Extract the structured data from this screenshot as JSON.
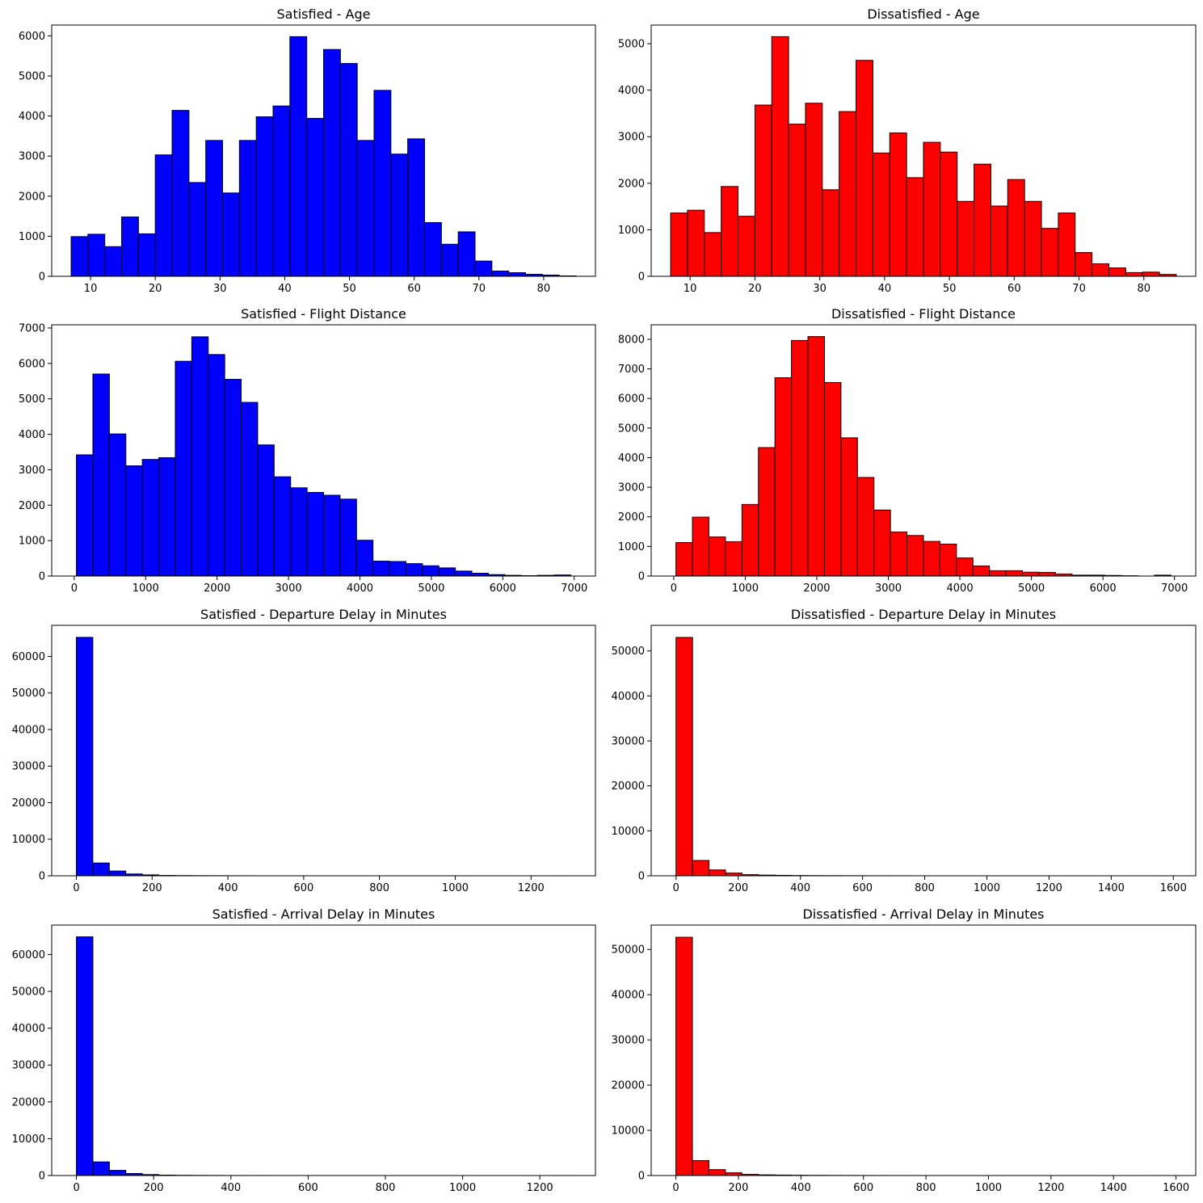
{
  "colors": {
    "satisfied": "#0000ff",
    "dissatisfied": "#ff0000",
    "edge": "#000000"
  },
  "chart_data": [
    {
      "type": "bar",
      "title": "Satisfied - Age",
      "color": "#0000ff",
      "bins": {
        "start": 7,
        "end": 85,
        "count": 30
      },
      "values": [
        990,
        1050,
        740,
        1480,
        1060,
        3030,
        4140,
        2340,
        3390,
        2080,
        3390,
        3980,
        4250,
        5980,
        3940,
        5660,
        5310,
        3390,
        4640,
        3050,
        3430,
        1340,
        800,
        1110,
        380,
        130,
        90,
        50,
        30,
        10
      ],
      "xlim": [
        4,
        88
      ],
      "ylim": [
        0,
        6270
      ],
      "xticks": [
        10,
        20,
        30,
        40,
        50,
        60,
        70,
        80
      ],
      "yticks": [
        0,
        1000,
        2000,
        3000,
        4000,
        5000,
        6000
      ]
    },
    {
      "type": "bar",
      "title": "Dissatisfied - Age",
      "color": "#ff0000",
      "bins": {
        "start": 7,
        "end": 85,
        "count": 30
      },
      "values": [
        1360,
        1420,
        940,
        1930,
        1290,
        3680,
        5150,
        3270,
        3720,
        1860,
        3540,
        4640,
        2650,
        3080,
        2120,
        2880,
        2670,
        1610,
        2410,
        1510,
        2080,
        1610,
        1030,
        1360,
        510,
        270,
        180,
        80,
        90,
        40
      ],
      "xlim": [
        4,
        88
      ],
      "ylim": [
        0,
        5400
      ],
      "xticks": [
        10,
        20,
        30,
        40,
        50,
        60,
        70,
        80
      ],
      "yticks": [
        0,
        1000,
        2000,
        3000,
        4000,
        5000
      ]
    },
    {
      "type": "bar",
      "title": "Satisfied - Flight Distance",
      "color": "#0000ff",
      "bins": {
        "start": 31,
        "end": 6951,
        "count": 30
      },
      "values": [
        3420,
        5700,
        4010,
        3110,
        3290,
        3340,
        6060,
        6750,
        6250,
        5550,
        4900,
        3700,
        2800,
        2490,
        2360,
        2280,
        2170,
        1010,
        420,
        410,
        350,
        290,
        230,
        140,
        80,
        40,
        20,
        10,
        20,
        30
      ],
      "xlim": [
        -315,
        7297
      ],
      "ylim": [
        0,
        7090
      ],
      "xticks": [
        0,
        1000,
        2000,
        3000,
        4000,
        5000,
        6000,
        7000
      ],
      "yticks": [
        0,
        1000,
        2000,
        3000,
        4000,
        5000,
        6000,
        7000
      ]
    },
    {
      "type": "bar",
      "title": "Dissatisfied - Flight Distance",
      "color": "#ff0000",
      "bins": {
        "start": 31,
        "end": 6951,
        "count": 30
      },
      "values": [
        1130,
        1990,
        1320,
        1160,
        2420,
        4340,
        6700,
        7960,
        8090,
        6540,
        4670,
        3330,
        2230,
        1490,
        1370,
        1170,
        1080,
        610,
        340,
        180,
        180,
        130,
        120,
        70,
        30,
        30,
        20,
        10,
        0,
        30
      ],
      "xlim": [
        -315,
        7297
      ],
      "ylim": [
        0,
        8490
      ],
      "xticks": [
        0,
        1000,
        2000,
        3000,
        4000,
        5000,
        6000,
        7000
      ],
      "yticks": [
        0,
        1000,
        2000,
        3000,
        4000,
        5000,
        6000,
        7000,
        8000
      ]
    },
    {
      "type": "bar",
      "title": "Satisfied - Departure Delay in Minutes",
      "color": "#0000ff",
      "bins": {
        "start": 0,
        "end": 1305,
        "count": 30
      },
      "values": [
        65200,
        3500,
        1300,
        500,
        250,
        100,
        60,
        40,
        25,
        15,
        10,
        8,
        6,
        5,
        4,
        3,
        2,
        2,
        1,
        1,
        1,
        1,
        1,
        1,
        0,
        0,
        0,
        0,
        0,
        1
      ],
      "xlim": [
        -65,
        1370
      ],
      "ylim": [
        0,
        68500
      ],
      "xticks": [
        0,
        200,
        400,
        600,
        800,
        1000,
        1200
      ],
      "yticks": [
        0,
        10000,
        20000,
        30000,
        40000,
        50000,
        60000
      ]
    },
    {
      "type": "bar",
      "title": "Dissatisfied - Departure Delay in Minutes",
      "color": "#ff0000",
      "bins": {
        "start": 0,
        "end": 1592,
        "count": 30
      },
      "values": [
        53000,
        3400,
        1300,
        600,
        250,
        150,
        100,
        60,
        40,
        30,
        20,
        15,
        10,
        8,
        6,
        5,
        4,
        3,
        2,
        2,
        1,
        1,
        1,
        1,
        1,
        0,
        0,
        0,
        0,
        1
      ],
      "xlim": [
        -80,
        1672
      ],
      "ylim": [
        0,
        55700
      ],
      "xticks": [
        0,
        200,
        400,
        600,
        800,
        1000,
        1200,
        1400,
        1600
      ],
      "yticks": [
        0,
        10000,
        20000,
        30000,
        40000,
        50000
      ]
    },
    {
      "type": "bar",
      "title": "Satisfied - Arrival Delay in Minutes",
      "color": "#0000ff",
      "bins": {
        "start": 0,
        "end": 1280,
        "count": 30
      },
      "values": [
        64800,
        3700,
        1400,
        550,
        260,
        110,
        60,
        40,
        25,
        15,
        10,
        8,
        6,
        5,
        4,
        3,
        2,
        2,
        1,
        1,
        1,
        1,
        1,
        0,
        0,
        0,
        0,
        0,
        0,
        1
      ],
      "xlim": [
        -64,
        1344
      ],
      "ylim": [
        0,
        68000
      ],
      "xticks": [
        0,
        200,
        400,
        600,
        800,
        1000,
        1200
      ],
      "yticks": [
        0,
        10000,
        20000,
        30000,
        40000,
        50000,
        60000
      ]
    },
    {
      "type": "bar",
      "title": "Dissatisfied - Arrival Delay in Minutes",
      "color": "#ff0000",
      "bins": {
        "start": 0,
        "end": 1584,
        "count": 30
      },
      "values": [
        52700,
        3300,
        1300,
        600,
        250,
        150,
        100,
        60,
        40,
        30,
        20,
        15,
        10,
        8,
        6,
        5,
        4,
        3,
        2,
        2,
        1,
        1,
        1,
        1,
        1,
        0,
        0,
        0,
        0,
        1
      ],
      "xlim": [
        -79,
        1663
      ],
      "ylim": [
        0,
        55400
      ],
      "xticks": [
        0,
        200,
        400,
        600,
        800,
        1000,
        1200,
        1400,
        1600
      ],
      "yticks": [
        0,
        10000,
        20000,
        30000,
        40000,
        50000
      ]
    }
  ]
}
